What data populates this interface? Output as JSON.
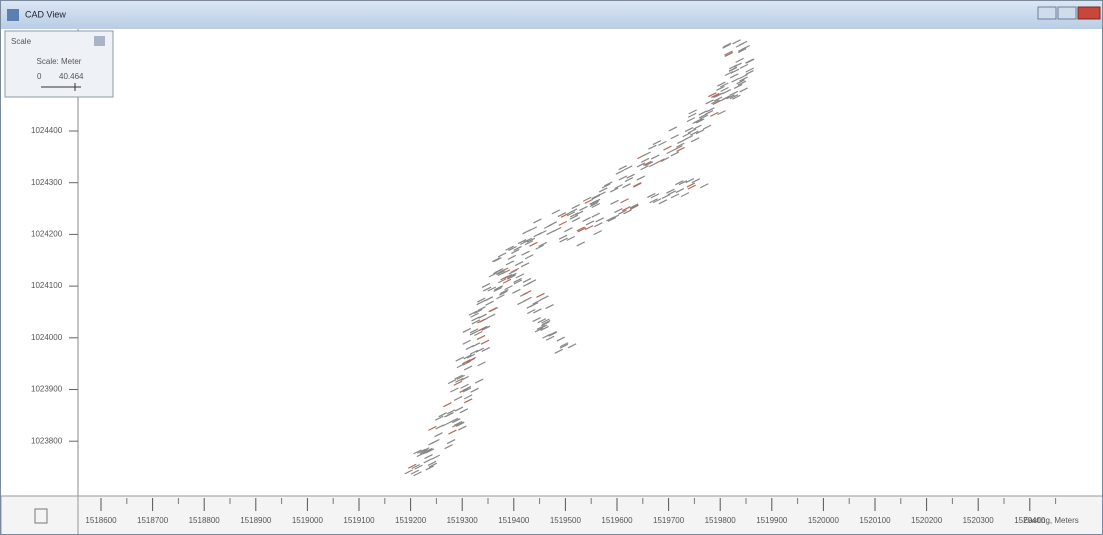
{
  "window": {
    "title": "CAD View"
  },
  "scale_panel": {
    "title": "Scale",
    "label": "Scale: Meter",
    "min": "0",
    "max": "40.464"
  },
  "y_axis": {
    "labels": [
      "1024400",
      "1024300",
      "1024200",
      "1024100",
      "1024000",
      "1023900",
      "1023800"
    ]
  },
  "x_axis": {
    "labels": [
      "1518600",
      "1518700",
      "1518800",
      "1518900",
      "1519000",
      "1519100",
      "1519200",
      "1519300",
      "1519400",
      "1519500",
      "1519600",
      "1519700",
      "1519800",
      "1519900",
      "1520000",
      "1520100",
      "1520200",
      "1520300",
      "1520400"
    ],
    "title": "Easting, Meters"
  }
}
